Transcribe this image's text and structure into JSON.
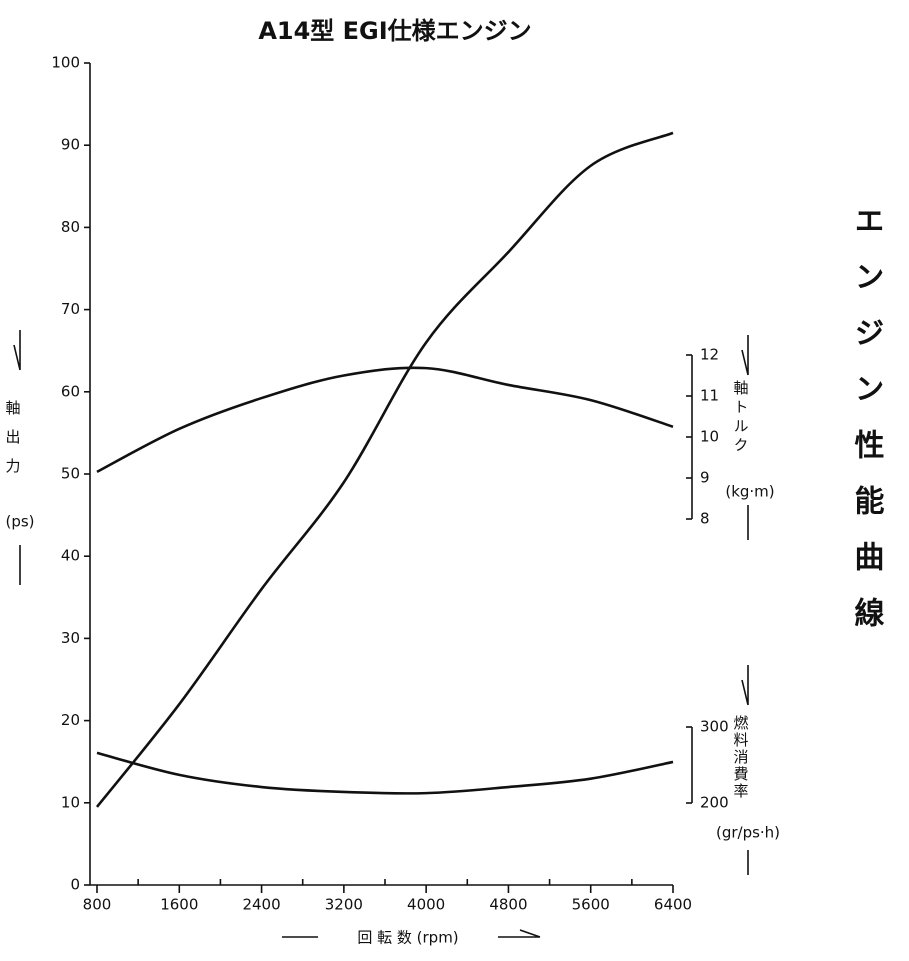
{
  "chart_data": {
    "type": "line",
    "title": "A14型 EGI仕様エンジン",
    "side_title": "エンジン性能曲線",
    "xlabel": "回 転 数  (rpm)",
    "ylabel": "軸出力",
    "ylabel_unit": "(ps)",
    "y2label": "軸トルク",
    "y2label_unit": "(kg·m)",
    "y3label": "燃料消費率",
    "y3label_unit": "(gr/ps·h)",
    "x": [
      800,
      1600,
      2400,
      3200,
      4000,
      4800,
      5600,
      6400
    ],
    "xlim": [
      800,
      6400
    ],
    "xticks": [
      800,
      1600,
      2400,
      3200,
      4000,
      4800,
      5600,
      6400
    ],
    "xminor_ticks": [
      1200,
      2000,
      2800,
      3600,
      4400,
      5200,
      6000
    ],
    "ylim": [
      0,
      100
    ],
    "yticks": [
      0,
      10,
      20,
      30,
      40,
      50,
      60,
      70,
      80,
      90,
      100
    ],
    "y2lim": [
      8,
      12
    ],
    "y2ticks": [
      8,
      9,
      10,
      11,
      12
    ],
    "y3lim": [
      200,
      300
    ],
    "y3ticks": [
      200,
      300
    ],
    "series": [
      {
        "axis": "y",
        "color": "#111111",
        "values": [
          9.5,
          22,
          36,
          49,
          66,
          77,
          87.5,
          91.5
        ]
      },
      {
        "axis": "y2",
        "color": "#111111",
        "values": [
          9.15,
          10.2,
          10.95,
          11.5,
          11.68,
          11.27,
          10.9,
          10.25
        ]
      },
      {
        "axis": "y3",
        "color": "#111111",
        "values": [
          266,
          237,
          221,
          214.5,
          213,
          221,
          232,
          254
        ]
      }
    ]
  }
}
